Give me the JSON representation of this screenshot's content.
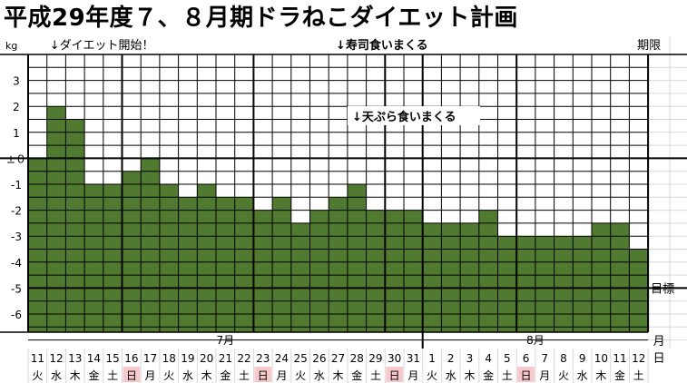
{
  "title": "平成29年度７、８月期ドラねこダイエット計画",
  "chart_data": {
    "type": "bar",
    "unit_label": "kg",
    "deadline_label": "期限",
    "target_label": "目標",
    "month_suffix": "月",
    "day_suffix": "日",
    "ylim": [
      -7,
      4
    ],
    "y_ticks": [
      {
        "value": 3,
        "label": "3"
      },
      {
        "value": 2,
        "label": "2"
      },
      {
        "value": 1,
        "label": "1"
      },
      {
        "value": 0,
        "label": "±０"
      },
      {
        "value": -1,
        "label": "-1"
      },
      {
        "value": -2,
        "label": "-2"
      },
      {
        "value": -3,
        "label": "-3"
      },
      {
        "value": -4,
        "label": "-4"
      },
      {
        "value": -5,
        "label": "-5"
      },
      {
        "value": -6,
        "label": "-6"
      }
    ],
    "target_value": -5,
    "months": [
      {
        "label": "7月",
        "start_index": 0,
        "end_index": 20
      },
      {
        "label": "8月",
        "start_index": 21,
        "end_index": 32
      }
    ],
    "days": [
      "11",
      "12",
      "13",
      "14",
      "15",
      "16",
      "17",
      "18",
      "19",
      "20",
      "21",
      "22",
      "23",
      "24",
      "25",
      "26",
      "27",
      "28",
      "29",
      "30",
      "31",
      "1",
      "2",
      "3",
      "4",
      "5",
      "6",
      "7",
      "8",
      "9",
      "10",
      "11",
      "12"
    ],
    "weekdays": [
      "火",
      "水",
      "木",
      "金",
      "土",
      "日",
      "月",
      "火",
      "水",
      "木",
      "金",
      "土",
      "日",
      "月",
      "火",
      "水",
      "木",
      "金",
      "土",
      "日",
      "月",
      "火",
      "水",
      "木",
      "金",
      "土",
      "日",
      "月",
      "火",
      "水",
      "木",
      "金",
      "土"
    ],
    "values": [
      0,
      2,
      1.5,
      -1,
      -1,
      -0.5,
      0,
      -1,
      -1.5,
      -1,
      -1.5,
      -1.5,
      -2,
      -1.5,
      -2.5,
      -2,
      -1.5,
      -1,
      -2,
      -2,
      -2,
      -2.5,
      -2.5,
      -2.5,
      -2,
      -3,
      -3,
      -3,
      -3,
      -3,
      -2.5,
      -2.5,
      -3.5
    ],
    "colors": {
      "bar": "#4f7a30",
      "red": "#e00000",
      "holiday_bg": "#f7c8cc"
    },
    "annotations": [
      {
        "text": "↓ダイエット開始！",
        "index": 1,
        "color": "#000000"
      },
      {
        "text": "↓寿司食いまくる",
        "index": 17,
        "color": "#e00000"
      },
      {
        "text": "↓天ぷら食いまくる",
        "index": 18,
        "color": "#e00000"
      }
    ]
  }
}
